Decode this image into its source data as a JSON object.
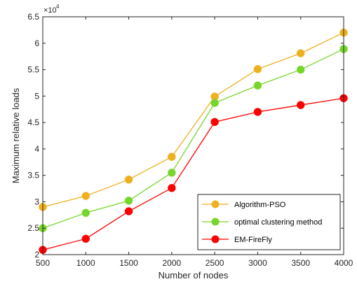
{
  "chart_data": {
    "type": "line",
    "xlabel": "Number of nodes",
    "ylabel": "Maximum relative loads",
    "exponent_label": "×10",
    "exponent_power": "4",
    "x": [
      500,
      1000,
      1500,
      2000,
      2500,
      3000,
      3500,
      4000
    ],
    "x_ticks": [
      500,
      1000,
      1500,
      2000,
      2500,
      3000,
      3500,
      4000
    ],
    "x_tick_labels": [
      "500",
      "1000",
      "1500",
      "2000",
      "2500",
      "3000",
      "3500",
      "4000"
    ],
    "xlim": [
      500,
      4000
    ],
    "ylim": [
      2,
      6.5
    ],
    "y_ticks": [
      2,
      2.5,
      3,
      3.5,
      4,
      4.5,
      5,
      5.5,
      6,
      6.5
    ],
    "y_tick_labels": [
      "2",
      "2.5",
      "3",
      "3.5",
      "4",
      "4.5",
      "5",
      "5.5",
      "6",
      "6.5"
    ],
    "grid": false,
    "legend_position": "bottom-right",
    "series": [
      {
        "name": "Algorithm-PSO",
        "color": "#EDB120",
        "values": [
          2.9,
          3.11,
          3.42,
          3.85,
          4.99,
          5.51,
          5.81,
          6.2
        ]
      },
      {
        "name": "optimal clustering method",
        "color": "#77D62B",
        "values": [
          2.5,
          2.79,
          3.02,
          3.55,
          4.87,
          5.2,
          5.5,
          5.89
        ]
      },
      {
        "name": "EM-FireFly",
        "color": "#FF0000",
        "values": [
          2.09,
          2.3,
          2.82,
          3.26,
          4.51,
          4.7,
          4.83,
          4.96
        ]
      }
    ]
  }
}
